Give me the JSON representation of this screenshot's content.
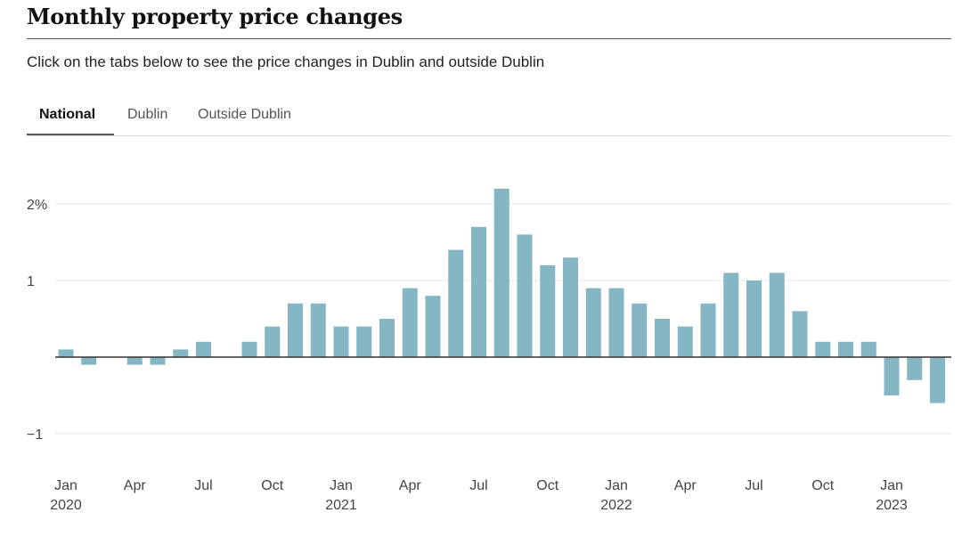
{
  "title": "Monthly property price changes",
  "subtitle": "Click on the tabs below to see the price changes in Dublin and outside Dublin",
  "tabs": [
    {
      "label": "National",
      "active": true
    },
    {
      "label": "Dublin",
      "active": false
    },
    {
      "label": "Outside Dublin",
      "active": false
    }
  ],
  "colors": {
    "bar": "#85b6c4",
    "zero_line": "#333333",
    "grid": "#e6e6e6"
  },
  "chart_data": {
    "type": "bar",
    "title": "Monthly property price changes",
    "xlabel": "",
    "ylabel": "",
    "ylim": [
      -1.2,
      2.5
    ],
    "y_ticks": [
      {
        "value": 2,
        "label": "2%"
      },
      {
        "value": 1,
        "label": "1"
      },
      {
        "value": -1,
        "label": "−1"
      }
    ],
    "categories": [
      "Jan 2020",
      "Feb 2020",
      "Mar 2020",
      "Apr 2020",
      "May 2020",
      "Jun 2020",
      "Jul 2020",
      "Aug 2020",
      "Sep 2020",
      "Oct 2020",
      "Nov 2020",
      "Dec 2020",
      "Jan 2021",
      "Feb 2021",
      "Mar 2021",
      "Apr 2021",
      "May 2021",
      "Jun 2021",
      "Jul 2021",
      "Aug 2021",
      "Sep 2021",
      "Oct 2021",
      "Nov 2021",
      "Dec 2021",
      "Jan 2022",
      "Feb 2022",
      "Mar 2022",
      "Apr 2022",
      "May 2022",
      "Jun 2022",
      "Jul 2022",
      "Aug 2022",
      "Sep 2022",
      "Oct 2022",
      "Nov 2022",
      "Dec 2022",
      "Jan 2023",
      "Feb 2023",
      "Mar 2023"
    ],
    "values": [
      0.1,
      -0.1,
      0,
      -0.1,
      -0.1,
      0.1,
      0.2,
      0,
      0.2,
      0.4,
      0.7,
      0.7,
      0.4,
      0.4,
      0.5,
      0.9,
      0.8,
      1.4,
      1.7,
      2.2,
      1.6,
      1.2,
      1.3,
      0.9,
      0.9,
      0.7,
      0.5,
      0.4,
      0.7,
      1.1,
      1.0,
      1.1,
      0.6,
      0.2,
      0.2,
      0.2,
      -0.5,
      -0.3,
      -0.6
    ],
    "x_ticks": [
      {
        "index": 0,
        "month": "Jan",
        "year": "2020"
      },
      {
        "index": 3,
        "month": "Apr",
        "year": ""
      },
      {
        "index": 6,
        "month": "Jul",
        "year": ""
      },
      {
        "index": 9,
        "month": "Oct",
        "year": ""
      },
      {
        "index": 12,
        "month": "Jan",
        "year": "2021"
      },
      {
        "index": 15,
        "month": "Apr",
        "year": ""
      },
      {
        "index": 18,
        "month": "Jul",
        "year": ""
      },
      {
        "index": 21,
        "month": "Oct",
        "year": ""
      },
      {
        "index": 24,
        "month": "Jan",
        "year": "2022"
      },
      {
        "index": 27,
        "month": "Apr",
        "year": ""
      },
      {
        "index": 30,
        "month": "Jul",
        "year": ""
      },
      {
        "index": 33,
        "month": "Oct",
        "year": ""
      },
      {
        "index": 36,
        "month": "Jan",
        "year": "2023"
      }
    ]
  }
}
